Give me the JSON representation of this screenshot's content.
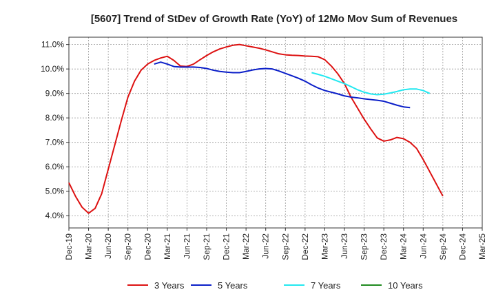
{
  "chart_data": {
    "type": "line",
    "title": "[5607]  Trend of StDev of Growth Rate (YoY) of 12Mo Mov Sum of Revenues",
    "xlabel": "",
    "ylabel": "",
    "ylim": [
      3.5,
      11.3
    ],
    "y_ticks": [
      4.0,
      5.0,
      6.0,
      7.0,
      8.0,
      9.0,
      10.0,
      11.0
    ],
    "y_tick_labels": [
      "4.0%",
      "5.0%",
      "6.0%",
      "7.0%",
      "8.0%",
      "9.0%",
      "10.0%",
      "11.0%"
    ],
    "x_tick_labels": [
      "Dec-19",
      "Mar-20",
      "Jun-20",
      "Sep-20",
      "Dec-20",
      "Mar-21",
      "Jun-21",
      "Sep-21",
      "Dec-21",
      "Mar-22",
      "Jun-22",
      "Sep-22",
      "Dec-22",
      "Mar-23",
      "Jun-23",
      "Sep-23",
      "Dec-23",
      "Mar-24",
      "Jun-24",
      "Sep-24",
      "Dec-24",
      "Mar-25"
    ],
    "x_start": "Dec-19",
    "grid": true,
    "legend_position": "bottom",
    "series": [
      {
        "name": "3 Years",
        "color": "#dd1111",
        "start_index": 0,
        "values": [
          5.35,
          4.8,
          4.35,
          4.1,
          4.3,
          4.9,
          5.9,
          6.9,
          7.9,
          8.85,
          9.5,
          9.95,
          10.2,
          10.35,
          10.45,
          10.52,
          10.35,
          10.12,
          10.1,
          10.2,
          10.38,
          10.55,
          10.7,
          10.82,
          10.9,
          10.97,
          11.0,
          10.95,
          10.9,
          10.85,
          10.78,
          10.7,
          10.62,
          10.58,
          10.56,
          10.55,
          10.53,
          10.52,
          10.5,
          10.38,
          10.12,
          9.8,
          9.4,
          8.85,
          8.4,
          7.95,
          7.55,
          7.18,
          7.05,
          7.1,
          7.2,
          7.15,
          7.0,
          6.75,
          6.3,
          5.8,
          5.3,
          4.8
        ]
      },
      {
        "name": "5 Years",
        "color": "#0a1ec8",
        "start_index": 13,
        "values": [
          10.2,
          10.28,
          10.2,
          10.1,
          10.08,
          10.08,
          10.08,
          10.06,
          10.02,
          9.95,
          9.9,
          9.87,
          9.85,
          9.85,
          9.9,
          9.96,
          10.0,
          10.02,
          10.0,
          9.92,
          9.82,
          9.72,
          9.62,
          9.5,
          9.35,
          9.22,
          9.12,
          9.05,
          8.98,
          8.9,
          8.85,
          8.82,
          8.78,
          8.75,
          8.72,
          8.68,
          8.6,
          8.52,
          8.45,
          8.42
        ]
      },
      {
        "name": "7 Years",
        "color": "#22e8f0",
        "start_index": 37,
        "values": [
          9.85,
          9.78,
          9.7,
          9.6,
          9.5,
          9.4,
          9.28,
          9.15,
          9.05,
          8.98,
          8.95,
          8.97,
          9.02,
          9.08,
          9.15,
          9.18,
          9.18,
          9.12,
          9.0
        ]
      },
      {
        "name": "10 Years",
        "color": "#1e8a1e",
        "start_index": 0,
        "values": []
      }
    ]
  }
}
